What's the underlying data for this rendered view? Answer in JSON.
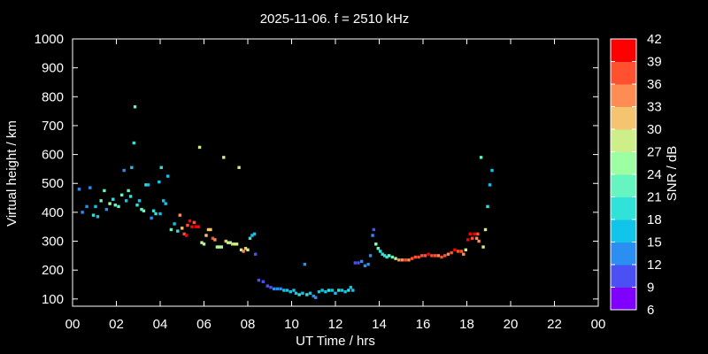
{
  "chart_data": {
    "type": "scatter",
    "title": "2025-11-06. f = 2510 kHz",
    "xlabel": "UT Time / hrs",
    "ylabel": "Virtual height / km",
    "xlim": [
      0,
      24
    ],
    "ylim": [
      75,
      1000
    ],
    "xticks": [
      "00",
      "02",
      "04",
      "06",
      "08",
      "10",
      "12",
      "14",
      "16",
      "18",
      "20",
      "22",
      "00"
    ],
    "yticks": [
      100,
      200,
      300,
      400,
      500,
      600,
      700,
      800,
      900,
      1000
    ],
    "grid": false,
    "colorbar": {
      "label": "SNR / dB",
      "min": 6,
      "max": 42,
      "ticks": [
        6,
        9,
        12,
        15,
        18,
        21,
        24,
        27,
        30,
        33,
        36,
        39,
        42
      ],
      "colors": [
        "#8000ff",
        "#4a50f4",
        "#2a8ff0",
        "#11c4ea",
        "#31e2d8",
        "#66f5c0",
        "#9cffa2",
        "#cdee88",
        "#f5c470",
        "#ff8c52",
        "#ff5030",
        "#ff0000"
      ]
    },
    "points": [
      [
        0.3,
        480,
        12
      ],
      [
        0.45,
        400,
        12
      ],
      [
        0.65,
        420,
        12
      ],
      [
        0.8,
        485,
        12
      ],
      [
        0.95,
        390,
        18
      ],
      [
        1.05,
        420,
        15
      ],
      [
        1.15,
        385,
        15
      ],
      [
        1.3,
        440,
        21
      ],
      [
        1.45,
        475,
        21
      ],
      [
        1.55,
        410,
        12
      ],
      [
        1.7,
        430,
        24
      ],
      [
        1.85,
        445,
        18
      ],
      [
        1.95,
        425,
        21
      ],
      [
        2.1,
        420,
        21
      ],
      [
        2.25,
        460,
        21
      ],
      [
        2.35,
        545,
        12
      ],
      [
        2.45,
        440,
        15
      ],
      [
        2.55,
        475,
        21
      ],
      [
        2.65,
        455,
        18
      ],
      [
        2.7,
        555,
        15
      ],
      [
        2.8,
        640,
        18
      ],
      [
        2.85,
        765,
        21
      ],
      [
        2.95,
        425,
        18
      ],
      [
        3.05,
        440,
        15
      ],
      [
        3.15,
        410,
        21
      ],
      [
        3.25,
        405,
        21
      ],
      [
        3.35,
        495,
        18
      ],
      [
        3.45,
        495,
        15
      ],
      [
        3.6,
        380,
        12
      ],
      [
        3.7,
        405,
        18
      ],
      [
        3.8,
        395,
        18
      ],
      [
        3.95,
        505,
        15
      ],
      [
        4.0,
        395,
        15
      ],
      [
        4.05,
        555,
        18
      ],
      [
        4.15,
        440,
        15
      ],
      [
        4.25,
        430,
        15
      ],
      [
        4.35,
        525,
        15
      ],
      [
        4.5,
        340,
        21
      ],
      [
        4.65,
        360,
        15
      ],
      [
        4.8,
        335,
        18
      ],
      [
        4.9,
        390,
        33
      ],
      [
        5.0,
        345,
        30
      ],
      [
        5.1,
        325,
        36
      ],
      [
        5.2,
        320,
        39
      ],
      [
        5.25,
        355,
        36
      ],
      [
        5.35,
        370,
        39
      ],
      [
        5.45,
        350,
        39
      ],
      [
        5.55,
        365,
        36
      ],
      [
        5.65,
        350,
        39
      ],
      [
        5.75,
        350,
        39
      ],
      [
        5.8,
        625,
        27
      ],
      [
        5.9,
        295,
        27
      ],
      [
        6.0,
        290,
        24
      ],
      [
        6.1,
        320,
        30
      ],
      [
        6.2,
        340,
        30
      ],
      [
        6.3,
        340,
        30
      ],
      [
        6.4,
        310,
        36
      ],
      [
        6.5,
        305,
        33
      ],
      [
        6.6,
        280,
        24
      ],
      [
        6.7,
        280,
        27
      ],
      [
        6.8,
        280,
        24
      ],
      [
        6.9,
        590,
        27
      ],
      [
        7.0,
        300,
        30
      ],
      [
        7.1,
        295,
        27
      ],
      [
        7.2,
        295,
        24
      ],
      [
        7.3,
        290,
        30
      ],
      [
        7.4,
        290,
        27
      ],
      [
        7.5,
        290,
        27
      ],
      [
        7.6,
        555,
        27
      ],
      [
        7.7,
        270,
        27
      ],
      [
        7.8,
        265,
        33
      ],
      [
        7.9,
        275,
        30
      ],
      [
        8.0,
        270,
        27
      ],
      [
        8.1,
        310,
        18
      ],
      [
        8.2,
        320,
        15
      ],
      [
        8.3,
        325,
        15
      ],
      [
        8.35,
        255,
        9
      ],
      [
        8.5,
        165,
        9
      ],
      [
        8.7,
        160,
        9
      ],
      [
        8.9,
        145,
        9
      ],
      [
        9.05,
        140,
        9
      ],
      [
        9.2,
        135,
        12
      ],
      [
        9.35,
        135,
        12
      ],
      [
        9.5,
        135,
        12
      ],
      [
        9.65,
        130,
        15
      ],
      [
        9.8,
        130,
        15
      ],
      [
        9.95,
        125,
        15
      ],
      [
        10.1,
        130,
        15
      ],
      [
        10.2,
        120,
        15
      ],
      [
        10.35,
        115,
        18
      ],
      [
        10.5,
        120,
        15
      ],
      [
        10.6,
        220,
        12
      ],
      [
        10.7,
        115,
        18
      ],
      [
        10.85,
        120,
        15
      ],
      [
        11.0,
        110,
        12
      ],
      [
        11.1,
        105,
        12
      ],
      [
        11.25,
        125,
        15
      ],
      [
        11.4,
        130,
        15
      ],
      [
        11.55,
        125,
        15
      ],
      [
        11.7,
        130,
        18
      ],
      [
        11.85,
        130,
        15
      ],
      [
        12.0,
        120,
        15
      ],
      [
        12.15,
        130,
        18
      ],
      [
        12.3,
        130,
        15
      ],
      [
        12.45,
        125,
        15
      ],
      [
        12.6,
        130,
        18
      ],
      [
        12.7,
        140,
        15
      ],
      [
        12.8,
        130,
        15
      ],
      [
        12.9,
        225,
        9
      ],
      [
        13.05,
        225,
        9
      ],
      [
        13.2,
        230,
        12
      ],
      [
        13.35,
        215,
        12
      ],
      [
        13.5,
        220,
        12
      ],
      [
        13.6,
        250,
        12
      ],
      [
        13.7,
        320,
        12
      ],
      [
        13.75,
        340,
        9
      ],
      [
        13.85,
        290,
        24
      ],
      [
        13.95,
        275,
        21
      ],
      [
        14.05,
        265,
        18
      ],
      [
        14.15,
        255,
        18
      ],
      [
        14.25,
        250,
        18
      ],
      [
        14.35,
        245,
        18
      ],
      [
        14.45,
        250,
        21
      ],
      [
        14.6,
        245,
        21
      ],
      [
        14.75,
        240,
        27
      ],
      [
        14.9,
        235,
        33
      ],
      [
        15.05,
        235,
        33
      ],
      [
        15.2,
        235,
        36
      ],
      [
        15.35,
        235,
        33
      ],
      [
        15.5,
        240,
        36
      ],
      [
        15.65,
        245,
        36
      ],
      [
        15.8,
        245,
        36
      ],
      [
        15.95,
        250,
        36
      ],
      [
        16.1,
        250,
        36
      ],
      [
        16.25,
        255,
        39
      ],
      [
        16.4,
        250,
        36
      ],
      [
        16.55,
        250,
        36
      ],
      [
        16.7,
        250,
        33
      ],
      [
        16.85,
        245,
        36
      ],
      [
        17.0,
        250,
        36
      ],
      [
        17.15,
        255,
        33
      ],
      [
        17.3,
        260,
        36
      ],
      [
        17.45,
        270,
        39
      ],
      [
        17.6,
        265,
        36
      ],
      [
        17.75,
        265,
        36
      ],
      [
        17.85,
        255,
        33
      ],
      [
        17.95,
        270,
        27
      ],
      [
        18.05,
        305,
        39
      ],
      [
        18.15,
        325,
        39
      ],
      [
        18.25,
        310,
        36
      ],
      [
        18.35,
        325,
        39
      ],
      [
        18.45,
        310,
        33
      ],
      [
        18.5,
        325,
        36
      ],
      [
        18.55,
        300,
        33
      ],
      [
        18.65,
        590,
        21
      ],
      [
        18.75,
        280,
        27
      ],
      [
        18.85,
        340,
        27
      ],
      [
        18.95,
        420,
        18
      ],
      [
        19.05,
        495,
        15
      ],
      [
        19.15,
        545,
        15
      ]
    ]
  }
}
